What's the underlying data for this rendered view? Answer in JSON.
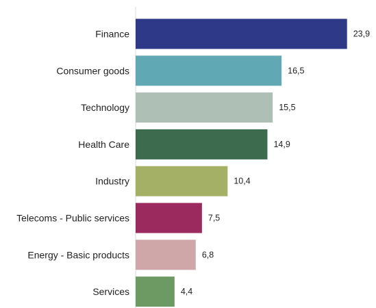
{
  "chart_data": {
    "type": "bar",
    "orientation": "horizontal",
    "categories": [
      "Finance",
      "Consumer goods",
      "Technology",
      "Health Care",
      "Industry",
      "Telecoms - Public services",
      "Energy - Basic products",
      "Services"
    ],
    "values": [
      23.9,
      16.5,
      15.5,
      14.9,
      10.4,
      7.5,
      6.8,
      4.4
    ],
    "value_labels": [
      "23,9",
      "16,5",
      "15,5",
      "14,9",
      "10,4",
      "7,5",
      "6,8",
      "4,4"
    ],
    "colors": [
      "#2e3a87",
      "#5fa8b4",
      "#aebfb6",
      "#3d6b4e",
      "#a4b065",
      "#9b2a5e",
      "#cfa7a8",
      "#6c9a62"
    ],
    "title": "",
    "xlabel": "",
    "ylabel": "",
    "xlim": [
      0,
      24
    ],
    "grid": false,
    "legend": "none"
  }
}
